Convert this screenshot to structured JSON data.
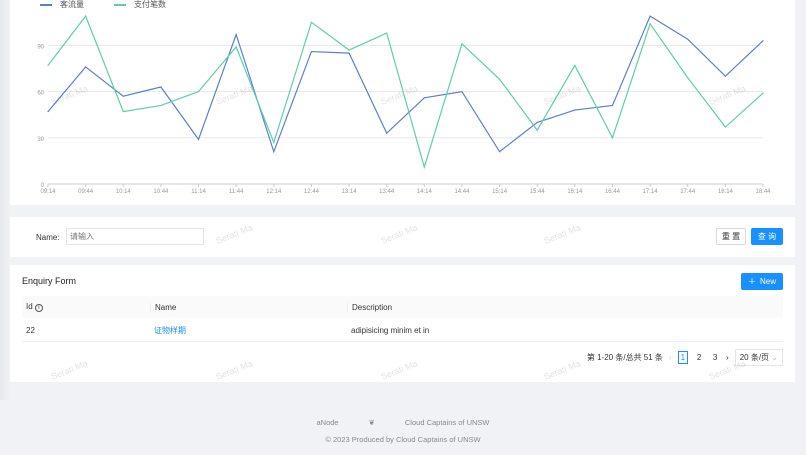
{
  "chart_data": {
    "type": "line",
    "x": [
      "09:14",
      "09:44",
      "10:14",
      "10:44",
      "11:14",
      "11:44",
      "12:14",
      "12:44",
      "13:14",
      "13:44",
      "14:14",
      "14:44",
      "15:14",
      "15:44",
      "16:14",
      "16:44",
      "17:14",
      "17:44",
      "18:14",
      "18:44"
    ],
    "series": [
      {
        "name": "客流量",
        "color": "#5b7fcf",
        "values": [
          47,
          76,
          57,
          63,
          29,
          97,
          21,
          86,
          85,
          33,
          56,
          60,
          21,
          40,
          48,
          51,
          109,
          94,
          70,
          93
        ]
      },
      {
        "name": "支付笔数",
        "color": "#5fcfa4",
        "values": [
          77,
          109,
          47,
          51,
          60,
          89,
          27,
          105,
          87,
          98,
          11,
          91,
          68,
          35,
          77,
          30,
          104,
          69,
          37,
          59
        ]
      }
    ],
    "yticks": [
      0,
      30,
      60,
      90
    ],
    "ylim": [
      0,
      120
    ],
    "grid": true,
    "legend": "top-left"
  },
  "watermark": "Serati Ma",
  "search": {
    "name_label": "Name:",
    "name_placeholder": "请输入",
    "reset_label": "重 置",
    "query_label": "查 询"
  },
  "table": {
    "title": "Enquiry Form",
    "new_label": "New",
    "columns": [
      "Id",
      "Name",
      "Description"
    ],
    "rows": [
      {
        "id": "22",
        "name": "证物样期",
        "description": "adipisicing minim et in"
      }
    ]
  },
  "pagination": {
    "summary": "第 1-20 条/总共 51 条",
    "pages": [
      "1",
      "2",
      "3"
    ],
    "current": "1",
    "page_size": "20 条/页"
  },
  "footer": {
    "link1": "aNode",
    "link2": "Cloud Captains of UNSW",
    "copyright": "2023 Produced by Cloud Captains of UNSW"
  }
}
